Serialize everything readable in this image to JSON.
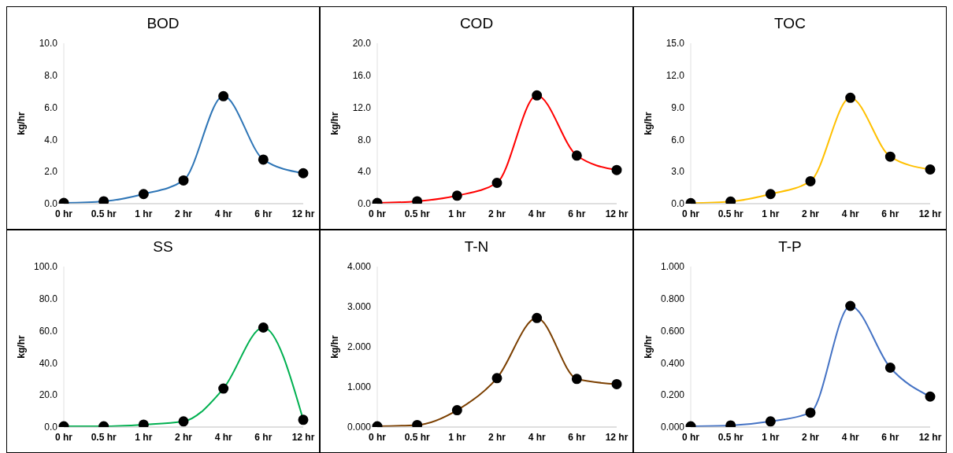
{
  "chart_data": [
    {
      "type": "line",
      "title": "BOD",
      "ylabel": "kg/hr",
      "categories": [
        "0 hr",
        "0.5 hr",
        "1 hr",
        "2 hr",
        "4 hr",
        "6 hr",
        "12 hr"
      ],
      "series": [
        {
          "color": "#2e75b6",
          "values": [
            0.05,
            0.15,
            0.6,
            1.45,
            6.7,
            2.75,
            1.9
          ]
        }
      ],
      "ylim": [
        0,
        10
      ],
      "yticks": [
        {
          "value": 0,
          "label": "0.0"
        },
        {
          "value": 2,
          "label": "2.0"
        },
        {
          "value": 4,
          "label": "4.0"
        },
        {
          "value": 6,
          "label": "6.0"
        },
        {
          "value": 8,
          "label": "8.0"
        },
        {
          "value": 10,
          "label": "10.0"
        }
      ],
      "marker": "circle",
      "grid": false,
      "legend": false
    },
    {
      "type": "line",
      "title": "COD",
      "ylabel": "kg/hr",
      "categories": [
        "0 hr",
        "0.5 hr",
        "1 hr",
        "2 hr",
        "4 hr",
        "6 hr",
        "12 hr"
      ],
      "series": [
        {
          "color": "#ff0000",
          "values": [
            0.1,
            0.3,
            1.0,
            2.6,
            13.5,
            6.0,
            4.2
          ]
        }
      ],
      "ylim": [
        0,
        20
      ],
      "yticks": [
        {
          "value": 0,
          "label": "0.0"
        },
        {
          "value": 4,
          "label": "4.0"
        },
        {
          "value": 8,
          "label": "8.0"
        },
        {
          "value": 12,
          "label": "12.0"
        },
        {
          "value": 16,
          "label": "16.0"
        },
        {
          "value": 20,
          "label": "20.0"
        }
      ],
      "marker": "circle",
      "grid": false,
      "legend": false
    },
    {
      "type": "line",
      "title": "TOC",
      "ylabel": "kg/hr",
      "categories": [
        "0 hr",
        "0.5 hr",
        "1 hr",
        "2 hr",
        "4 hr",
        "6 hr",
        "12 hr"
      ],
      "series": [
        {
          "color": "#ffc000",
          "values": [
            0.05,
            0.2,
            0.9,
            2.1,
            9.9,
            4.4,
            3.2
          ]
        }
      ],
      "ylim": [
        0,
        15
      ],
      "yticks": [
        {
          "value": 0,
          "label": "0.0"
        },
        {
          "value": 3,
          "label": "3.0"
        },
        {
          "value": 6,
          "label": "6.0"
        },
        {
          "value": 9,
          "label": "9.0"
        },
        {
          "value": 12,
          "label": "12.0"
        },
        {
          "value": 15,
          "label": "15.0"
        }
      ],
      "marker": "circle",
      "grid": false,
      "legend": false
    },
    {
      "type": "line",
      "title": "SS",
      "ylabel": "kg/hr",
      "categories": [
        "0 hr",
        "0.5 hr",
        "1 hr",
        "2 hr",
        "4 hr",
        "6 hr",
        "12 hr"
      ],
      "series": [
        {
          "color": "#00b050",
          "values": [
            0.5,
            0.5,
            1.5,
            3.5,
            24,
            62,
            4.5
          ]
        }
      ],
      "ylim": [
        0,
        100
      ],
      "yticks": [
        {
          "value": 0,
          "label": "0.0"
        },
        {
          "value": 20,
          "label": "20.0"
        },
        {
          "value": 40,
          "label": "40.0"
        },
        {
          "value": 60,
          "label": "60.0"
        },
        {
          "value": 80,
          "label": "80.0"
        },
        {
          "value": 100,
          "label": "100.0"
        }
      ],
      "marker": "circle",
      "grid": false,
      "legend": false
    },
    {
      "type": "line",
      "title": "T-N",
      "ylabel": "kg/hr",
      "categories": [
        "0 hr",
        "0.5 hr",
        "1 hr",
        "2 hr",
        "4 hr",
        "6 hr",
        "12 hr"
      ],
      "series": [
        {
          "color": "#7b3f00",
          "values": [
            0.02,
            0.05,
            0.42,
            1.22,
            2.72,
            1.2,
            1.07
          ]
        }
      ],
      "ylim": [
        0,
        4
      ],
      "yticks": [
        {
          "value": 0,
          "label": "0.000"
        },
        {
          "value": 1,
          "label": "1.000"
        },
        {
          "value": 2,
          "label": "2.000"
        },
        {
          "value": 3,
          "label": "3.000"
        },
        {
          "value": 4,
          "label": "4.000"
        }
      ],
      "marker": "circle",
      "grid": false,
      "legend": false
    },
    {
      "type": "line",
      "title": "T-P",
      "ylabel": "kg/hr",
      "categories": [
        "0 hr",
        "0.5 hr",
        "1 hr",
        "2 hr",
        "4 hr",
        "6 hr",
        "12 hr"
      ],
      "series": [
        {
          "color": "#4472c4",
          "values": [
            0.005,
            0.01,
            0.035,
            0.09,
            0.755,
            0.37,
            0.19
          ]
        }
      ],
      "ylim": [
        0,
        1
      ],
      "yticks": [
        {
          "value": 0,
          "label": "0.000"
        },
        {
          "value": 0.2,
          "label": "0.200"
        },
        {
          "value": 0.4,
          "label": "0.400"
        },
        {
          "value": 0.6,
          "label": "0.600"
        },
        {
          "value": 0.8,
          "label": "0.800"
        },
        {
          "value": 1,
          "label": "1.000"
        }
      ],
      "marker": "circle",
      "grid": false,
      "legend": false
    }
  ]
}
